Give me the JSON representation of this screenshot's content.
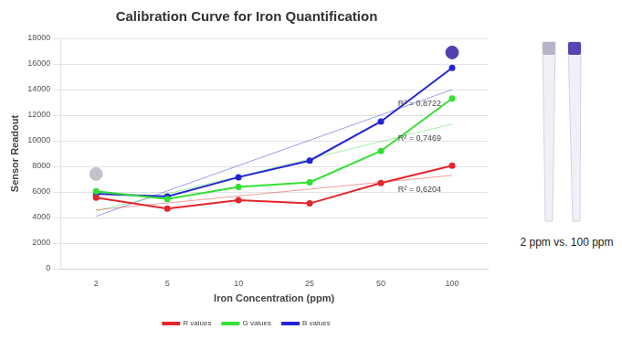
{
  "chart_data": {
    "type": "line",
    "title": "Calibration Curve for Iron Quantification",
    "x_label": "Iron Concentration (ppm)",
    "y_label": "Sensor Readout",
    "categories": [
      "2",
      "5",
      "10",
      "25",
      "50",
      "100"
    ],
    "series": [
      {
        "name": "R values",
        "color": "#e3262b",
        "values": [
          5550,
          4700,
          5350,
          5100,
          6700,
          8050
        ]
      },
      {
        "name": "G values",
        "color": "#33e033",
        "values": [
          6050,
          5450,
          6400,
          6750,
          9200,
          13300
        ]
      },
      {
        "name": "B values",
        "color": "#2424d6",
        "values": [
          5850,
          5650,
          7150,
          8450,
          11500,
          15700
        ]
      }
    ],
    "trendlines": [
      {
        "series": "R values",
        "values": [
          4600,
          5140,
          5680,
          6220,
          6760,
          7300
        ],
        "label": "R² = 0,6204"
      },
      {
        "series": "G values",
        "values": [
          4500,
          5860,
          7220,
          8580,
          9940,
          11300
        ],
        "label": "R² = 0,7469"
      },
      {
        "series": "B values",
        "values": [
          4100,
          6080,
          8060,
          10040,
          12020,
          14000
        ],
        "label": "R² = 0,8722"
      }
    ],
    "color_samples": [
      {
        "category": "2",
        "value": 7400,
        "color": "#c2c2cc"
      },
      {
        "category": "100",
        "value": 16900,
        "color": "#5540b0"
      }
    ],
    "ylim": [
      0,
      18000
    ],
    "yticks": [
      0,
      2000,
      4000,
      6000,
      8000,
      10000,
      12000,
      14000,
      16000,
      18000
    ],
    "grid": true,
    "legend": "bottom",
    "marker": "circle"
  },
  "image": {
    "caption": "2 ppm vs. 100 ppm",
    "strip_colors": [
      "#b8b4c8",
      "#5a44b4"
    ]
  }
}
